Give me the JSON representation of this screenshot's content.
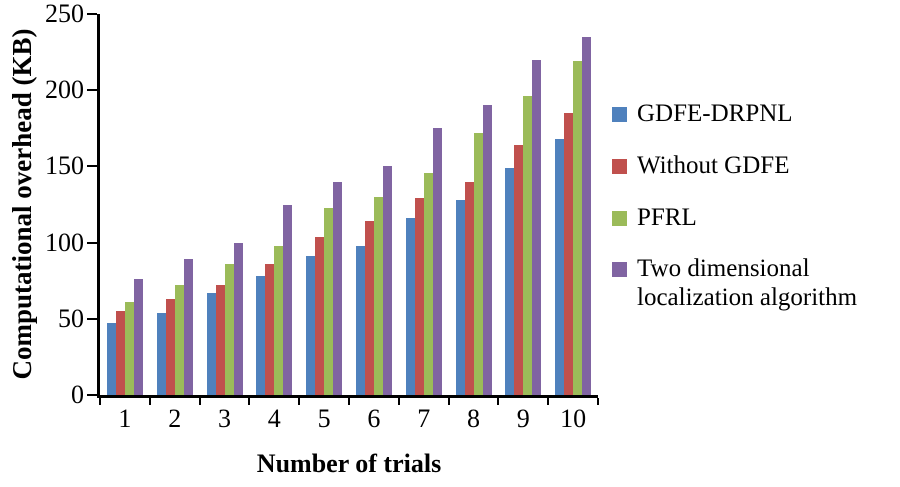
{
  "chart_data": {
    "type": "bar",
    "xlabel": "Number of trials",
    "ylabel": "Computational overhead (KB)",
    "ylim": [
      0,
      250
    ],
    "yticks": [
      0,
      50,
      100,
      150,
      200,
      250
    ],
    "categories": [
      "1",
      "2",
      "3",
      "4",
      "5",
      "6",
      "7",
      "8",
      "9",
      "10"
    ],
    "series": [
      {
        "name": "GDFE-DRPNL",
        "color": "#4F81BD",
        "values": [
          47,
          54,
          67,
          78,
          91,
          98,
          116,
          128,
          149,
          168
        ]
      },
      {
        "name": "Without GDFE",
        "color": "#C0504D",
        "values": [
          55,
          63,
          72,
          86,
          104,
          114,
          129,
          140,
          164,
          185
        ]
      },
      {
        "name": "PFRL",
        "color": "#9BBB59",
        "values": [
          61,
          72,
          86,
          98,
          123,
          130,
          146,
          172,
          196,
          219
        ]
      },
      {
        "name": "Two dimensional localization algorithm",
        "color": "#8064A2",
        "values": [
          76,
          89,
          100,
          125,
          140,
          150,
          175,
          190,
          220,
          235
        ]
      }
    ],
    "legend_position": "right",
    "grid": false
  }
}
